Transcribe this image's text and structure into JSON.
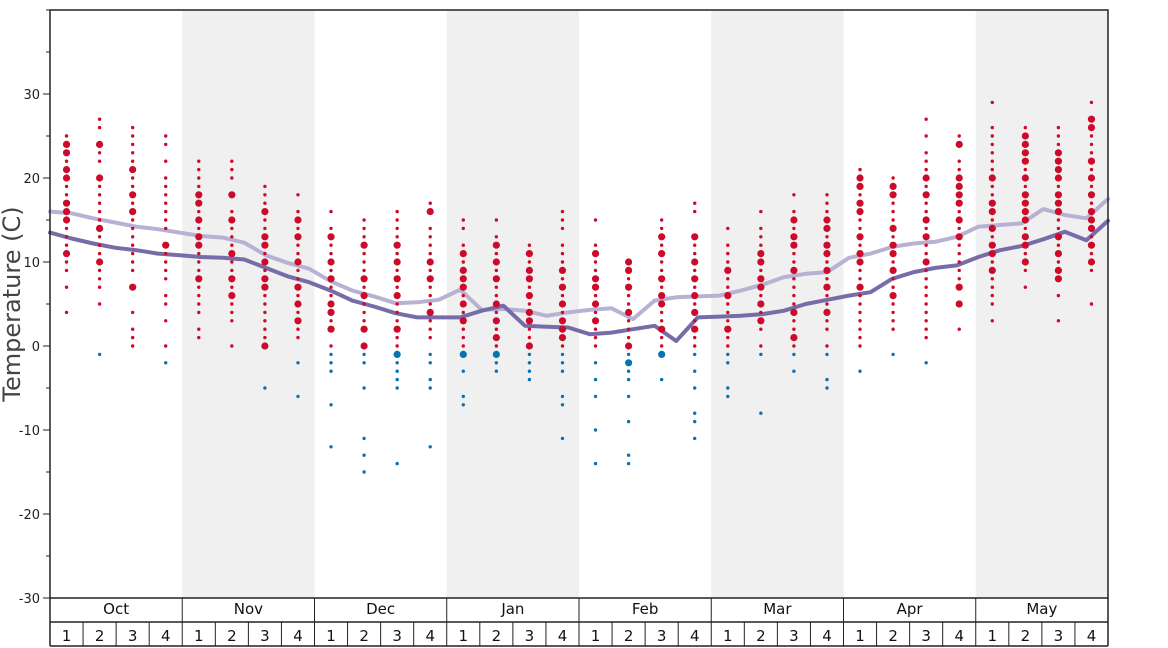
{
  "chart_data": {
    "type": "scatter",
    "ylabel": "Temperature (C)",
    "ylim": [
      -30,
      40
    ],
    "yticks": [
      -30,
      -20,
      -10,
      0,
      10,
      20,
      30
    ],
    "months": [
      "Oct",
      "Nov",
      "Dec",
      "Jan",
      "Feb",
      "Mar",
      "Apr",
      "May"
    ],
    "week_labels": [
      "1",
      "2",
      "3",
      "4"
    ],
    "shaded_months": [
      "Nov",
      "Jan",
      "Mar",
      "May"
    ],
    "colors": {
      "warm": "#cc0a2a",
      "cold": "#0a72b2",
      "line_high": "#b9b1d3",
      "line_low": "#786ca8",
      "shade": "#f0f0f0"
    },
    "series": [
      {
        "name": "",
        "style": "line_high",
        "values": [
          16.0,
          15.8,
          15.2,
          14.7,
          14.2,
          13.9,
          13.5,
          13.1,
          12.9,
          12.3,
          10.8,
          9.9,
          9.2,
          7.7,
          6.6,
          5.9,
          5.1,
          5.2,
          5.5,
          6.7,
          4.3,
          4.4,
          4.2,
          3.6,
          4.0,
          4.3,
          4.5,
          3.2,
          5.4,
          5.8,
          5.9,
          6.0,
          6.6,
          7.3,
          8.2,
          8.6,
          8.8,
          10.5,
          11.0,
          11.8,
          12.2,
          12.4,
          13.0,
          14.2,
          14.4,
          14.6,
          16.3,
          15.6,
          15.2,
          17.5
        ]
      },
      {
        "name": "",
        "style": "line_low",
        "values": [
          13.5,
          12.8,
          12.2,
          11.7,
          11.4,
          11.0,
          10.8,
          10.6,
          10.5,
          10.3,
          9.3,
          8.3,
          7.6,
          6.6,
          5.4,
          4.7,
          3.9,
          3.4,
          3.4,
          3.4,
          4.2,
          4.8,
          2.4,
          2.3,
          2.2,
          1.4,
          1.6,
          2.0,
          2.4,
          0.6,
          3.4,
          3.5,
          3.6,
          3.8,
          4.2,
          5.0,
          5.5,
          6.0,
          6.4,
          8.0,
          8.8,
          9.3,
          9.6,
          10.6,
          11.4,
          11.9,
          12.7,
          13.6,
          12.6,
          14.9
        ]
      }
    ],
    "points": [
      {
        "x": "Oct wk 1",
        "temps": [
          25,
          24,
          23,
          22,
          21,
          20,
          19,
          18,
          17,
          16,
          15,
          14,
          13,
          12,
          11,
          10,
          9,
          7,
          4
        ],
        "big": [
          24,
          23,
          21,
          20,
          17,
          16,
          15,
          11
        ]
      },
      {
        "x": "Oct wk 2",
        "temps": [
          27,
          26,
          24,
          23,
          22,
          20,
          19,
          18,
          17,
          16,
          15,
          14,
          13,
          12,
          11,
          10,
          9,
          8,
          7,
          5,
          -1
        ],
        "big": [
          24,
          20,
          14,
          10
        ]
      },
      {
        "x": "Oct wk 3",
        "temps": [
          26,
          25,
          24,
          23,
          22,
          21,
          20,
          19,
          18,
          17,
          16,
          15,
          14,
          13,
          12,
          11,
          10,
          9,
          7,
          4,
          2,
          1,
          0
        ],
        "big": [
          21,
          18,
          16,
          7
        ]
      },
      {
        "x": "Oct wk 4",
        "temps": [
          25,
          24,
          22,
          20,
          19,
          18,
          17,
          16,
          15,
          14,
          12,
          11,
          10,
          9,
          8,
          6,
          5,
          3,
          0,
          -2
        ],
        "big": [
          12
        ]
      },
      {
        "x": "Nov wk 1",
        "temps": [
          22,
          21,
          20,
          19,
          18,
          17,
          16,
          15,
          14,
          13,
          12,
          11,
          10,
          9,
          8,
          7,
          6,
          5,
          4,
          2,
          1
        ],
        "big": [
          18,
          17,
          15,
          13,
          12,
          8
        ]
      },
      {
        "x": "Nov wk 2",
        "temps": [
          22,
          21,
          20,
          18,
          16,
          15,
          14,
          13,
          12,
          11,
          10,
          9,
          8,
          7,
          6,
          5,
          4,
          3,
          0
        ],
        "big": [
          18,
          15,
          11,
          8,
          6
        ]
      },
      {
        "x": "Nov wk 3",
        "temps": [
          19,
          18,
          17,
          16,
          15,
          14,
          13,
          12,
          11,
          10,
          9,
          8,
          7,
          6,
          5,
          4,
          3,
          2,
          1,
          0,
          -5
        ],
        "big": [
          16,
          13,
          12,
          10,
          8,
          7,
          0
        ]
      },
      {
        "x": "Nov wk 4",
        "temps": [
          18,
          16,
          15,
          14,
          13,
          12,
          11,
          10,
          9,
          8,
          7,
          6,
          5,
          4,
          3,
          2,
          1,
          -2,
          -6
        ],
        "big": [
          15,
          13,
          10,
          7,
          5,
          3
        ]
      },
      {
        "x": "Dec wk 1",
        "temps": [
          16,
          14,
          13,
          12,
          11,
          10,
          9,
          8,
          7,
          6,
          5,
          4,
          3,
          2,
          0,
          -1,
          -2,
          -3,
          -7,
          -12
        ],
        "big": [
          13,
          10,
          8,
          5,
          4,
          2
        ]
      },
      {
        "x": "Dec wk 2",
        "temps": [
          15,
          14,
          13,
          12,
          11,
          10,
          9,
          8,
          7,
          6,
          5,
          4,
          3,
          2,
          0,
          -1,
          -2,
          -5,
          -11,
          -13,
          -15
        ],
        "big": [
          12,
          8,
          6,
          2,
          0
        ]
      },
      {
        "x": "Dec wk 3",
        "temps": [
          16,
          15,
          14,
          13,
          12,
          11,
          10,
          9,
          8,
          7,
          6,
          5,
          4,
          3,
          2,
          1,
          0,
          -1,
          -2,
          -3,
          -4,
          -5,
          -14
        ],
        "big": [
          12,
          10,
          8,
          6,
          2,
          -1
        ]
      },
      {
        "x": "Dec wk 4",
        "temps": [
          17,
          16,
          14,
          13,
          12,
          11,
          10,
          9,
          8,
          7,
          6,
          5,
          4,
          3,
          2,
          1,
          -1,
          -2,
          -4,
          -5,
          -12
        ],
        "big": [
          16,
          10,
          8,
          4
        ]
      },
      {
        "x": "Jan wk 1",
        "temps": [
          15,
          14,
          12,
          11,
          10,
          9,
          8,
          7,
          6,
          5,
          4,
          3,
          2,
          1,
          0,
          -1,
          -3,
          -6,
          -7
        ],
        "big": [
          11,
          9,
          8,
          7,
          5,
          3,
          -1
        ]
      },
      {
        "x": "Jan wk 2",
        "temps": [
          15,
          13,
          12,
          11,
          10,
          9,
          8,
          7,
          6,
          5,
          4,
          3,
          2,
          1,
          0,
          -1,
          -2,
          -3
        ],
        "big": [
          12,
          10,
          8,
          5,
          3,
          1,
          -1
        ]
      },
      {
        "x": "Jan wk 3",
        "temps": [
          12,
          11,
          10,
          9,
          8,
          7,
          6,
          5,
          4,
          3,
          2,
          1,
          0,
          -1,
          -2,
          -3,
          -4
        ],
        "big": [
          11,
          9,
          8,
          6,
          4,
          3,
          0
        ]
      },
      {
        "x": "Jan wk 4",
        "temps": [
          16,
          15,
          14,
          12,
          11,
          10,
          9,
          8,
          7,
          6,
          5,
          4,
          3,
          2,
          1,
          0,
          -1,
          -2,
          -3,
          -6,
          -7,
          -11
        ],
        "big": [
          9,
          7,
          5,
          3,
          2,
          1
        ]
      },
      {
        "x": "Feb wk 1",
        "temps": [
          15,
          12,
          11,
          10,
          9,
          8,
          7,
          6,
          5,
          4,
          3,
          2,
          1,
          0,
          -2,
          -4,
          -6,
          -10,
          -14
        ],
        "big": [
          11,
          8,
          7,
          5,
          3
        ]
      },
      {
        "x": "Feb wk 2",
        "temps": [
          10,
          9,
          8,
          7,
          6,
          5,
          4,
          3,
          2,
          1,
          0,
          -1,
          -2,
          -3,
          -4,
          -6,
          -9,
          -13,
          -14
        ],
        "big": [
          10,
          9,
          7,
          4,
          0,
          -2
        ]
      },
      {
        "x": "Feb wk 3",
        "temps": [
          15,
          14,
          13,
          12,
          11,
          10,
          9,
          8,
          7,
          6,
          5,
          4,
          3,
          2,
          1,
          0,
          -1,
          -4
        ],
        "big": [
          13,
          11,
          8,
          6,
          5,
          2,
          -1
        ]
      },
      {
        "x": "Feb wk 4",
        "temps": [
          17,
          16,
          13,
          12,
          11,
          10,
          9,
          8,
          7,
          6,
          5,
          4,
          3,
          2,
          1,
          0,
          -1,
          -3,
          -5,
          -8,
          -9,
          -11
        ],
        "big": [
          13,
          10,
          8,
          6,
          4,
          2
        ]
      },
      {
        "x": "Mar wk 1",
        "temps": [
          14,
          12,
          11,
          10,
          9,
          8,
          7,
          6,
          5,
          4,
          3,
          2,
          1,
          0,
          -1,
          -2,
          -5,
          -6
        ],
        "big": [
          9,
          6,
          2
        ]
      },
      {
        "x": "Mar wk 2",
        "temps": [
          16,
          14,
          13,
          12,
          11,
          10,
          9,
          8,
          7,
          6,
          5,
          4,
          3,
          2,
          0,
          -1,
          -8
        ],
        "big": [
          11,
          10,
          8,
          7,
          5,
          3
        ]
      },
      {
        "x": "Mar wk 3",
        "temps": [
          18,
          16,
          15,
          14,
          13,
          12,
          11,
          10,
          9,
          8,
          7,
          6,
          5,
          4,
          3,
          2,
          1,
          0,
          -1,
          -3
        ],
        "big": [
          15,
          13,
          12,
          9,
          4,
          1
        ]
      },
      {
        "x": "Mar wk 4",
        "temps": [
          18,
          17,
          16,
          15,
          14,
          13,
          12,
          11,
          10,
          9,
          8,
          7,
          6,
          5,
          4,
          3,
          2,
          0,
          -1,
          -4,
          -5
        ],
        "big": [
          15,
          14,
          12,
          11,
          9,
          7,
          4
        ]
      },
      {
        "x": "Apr wk 1",
        "temps": [
          21,
          20,
          19,
          18,
          17,
          16,
          15,
          14,
          13,
          12,
          11,
          10,
          9,
          8,
          7,
          6,
          5,
          4,
          3,
          2,
          1,
          0,
          -3
        ],
        "big": [
          20,
          19,
          17,
          16,
          13,
          11,
          10,
          7
        ]
      },
      {
        "x": "Apr wk 2",
        "temps": [
          20,
          19,
          18,
          17,
          16,
          15,
          14,
          13,
          12,
          11,
          10,
          9,
          8,
          7,
          6,
          5,
          4,
          3,
          2,
          -1
        ],
        "big": [
          19,
          18,
          14,
          12,
          11,
          9,
          6
        ]
      },
      {
        "x": "Apr wk 3",
        "temps": [
          27,
          25,
          23,
          22,
          21,
          20,
          19,
          18,
          17,
          16,
          15,
          14,
          13,
          12,
          11,
          10,
          9,
          8,
          7,
          6,
          5,
          4,
          3,
          2,
          1,
          -2
        ],
        "big": [
          20,
          18,
          15,
          13,
          10
        ]
      },
      {
        "x": "Apr wk 4",
        "temps": [
          25,
          24,
          22,
          21,
          20,
          19,
          18,
          17,
          16,
          15,
          14,
          13,
          12,
          11,
          10,
          9,
          8,
          7,
          5,
          2
        ],
        "big": [
          24,
          20,
          19,
          18,
          17,
          15,
          13,
          7,
          5
        ]
      },
      {
        "x": "May wk 1",
        "temps": [
          29,
          26,
          25,
          24,
          23,
          22,
          21,
          20,
          19,
          18,
          17,
          16,
          15,
          14,
          13,
          12,
          11,
          10,
          9,
          8,
          7,
          6,
          5,
          3
        ],
        "big": [
          20,
          17,
          16,
          14,
          12,
          11,
          9
        ]
      },
      {
        "x": "May wk 2",
        "temps": [
          26,
          25,
          24,
          23,
          22,
          21,
          20,
          19,
          18,
          17,
          16,
          15,
          14,
          13,
          12,
          11,
          10,
          9,
          7
        ],
        "big": [
          25,
          24,
          23,
          22,
          20,
          18,
          17,
          16,
          15,
          13,
          12,
          10
        ]
      },
      {
        "x": "May wk 3",
        "temps": [
          26,
          25,
          24,
          23,
          22,
          21,
          20,
          19,
          18,
          17,
          16,
          15,
          14,
          13,
          12,
          11,
          10,
          9,
          8,
          6,
          3
        ],
        "big": [
          23,
          22,
          21,
          20,
          18,
          17,
          16,
          13,
          11,
          9,
          8
        ]
      },
      {
        "x": "May wk 4",
        "temps": [
          29,
          27,
          26,
          25,
          24,
          23,
          22,
          21,
          20,
          19,
          18,
          17,
          16,
          15,
          14,
          13,
          12,
          11,
          10,
          9,
          5
        ],
        "big": [
          27,
          26,
          22,
          20,
          18,
          16,
          15,
          14,
          12,
          10
        ]
      }
    ]
  }
}
